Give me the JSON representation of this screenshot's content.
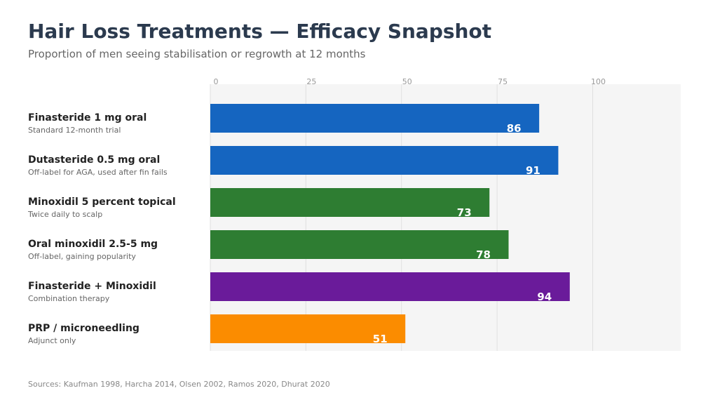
{
  "title": "Hair Loss Treatments — Efficacy Snapshot",
  "subtitle": "Proportion of men seeing stabilisation or regrowth at 12 months",
  "source": "Sources: Kaufman 1998, Harcha 2014, Olsen 2002, Ramos 2020, Dhurat 2020",
  "rows": [
    {
      "label": "Finasteride 1 mg oral",
      "sub": "Standard 12-month trial"
    },
    {
      "label": "Dutasteride 0.5 mg oral",
      "sub": "Off-label for AGA, used after fin fails"
    },
    {
      "label": "Minoxidil 5 percent topical",
      "sub": "Twice daily to scalp"
    },
    {
      "label": "Oral minoxidil 2.5-5 mg",
      "sub": "Off-label, gaining popularity"
    },
    {
      "label": "Finasteride + Minoxidil",
      "sub": "Combination therapy"
    },
    {
      "label": "PRP / microneedling",
      "sub": "Adjunct only"
    }
  ],
  "chart_data": {
    "type": "bar",
    "orientation": "horizontal",
    "categories": [
      "Finasteride 1 mg oral",
      "Dutasteride 0.5 mg oral",
      "Minoxidil 5 percent topical",
      "Oral minoxidil 2.5-5 mg",
      "Finasteride + Minoxidil",
      "PRP / microneedling"
    ],
    "values": [
      86,
      91,
      73,
      78,
      94,
      51
    ],
    "bar_colors": [
      "#1565c0",
      "#1565c0",
      "#2e7d32",
      "#2e7d32",
      "#6a1b9a",
      "#fb8c00"
    ],
    "xticks": [
      0,
      25,
      50,
      75,
      100
    ],
    "xlim": [
      0,
      123
    ],
    "grid": true,
    "title": "Hair Loss Treatments — Efficacy Snapshot",
    "subtitle": "Proportion of men seeing stabilisation or regrowth at 12 months",
    "xlabel": "",
    "ylabel": ""
  }
}
